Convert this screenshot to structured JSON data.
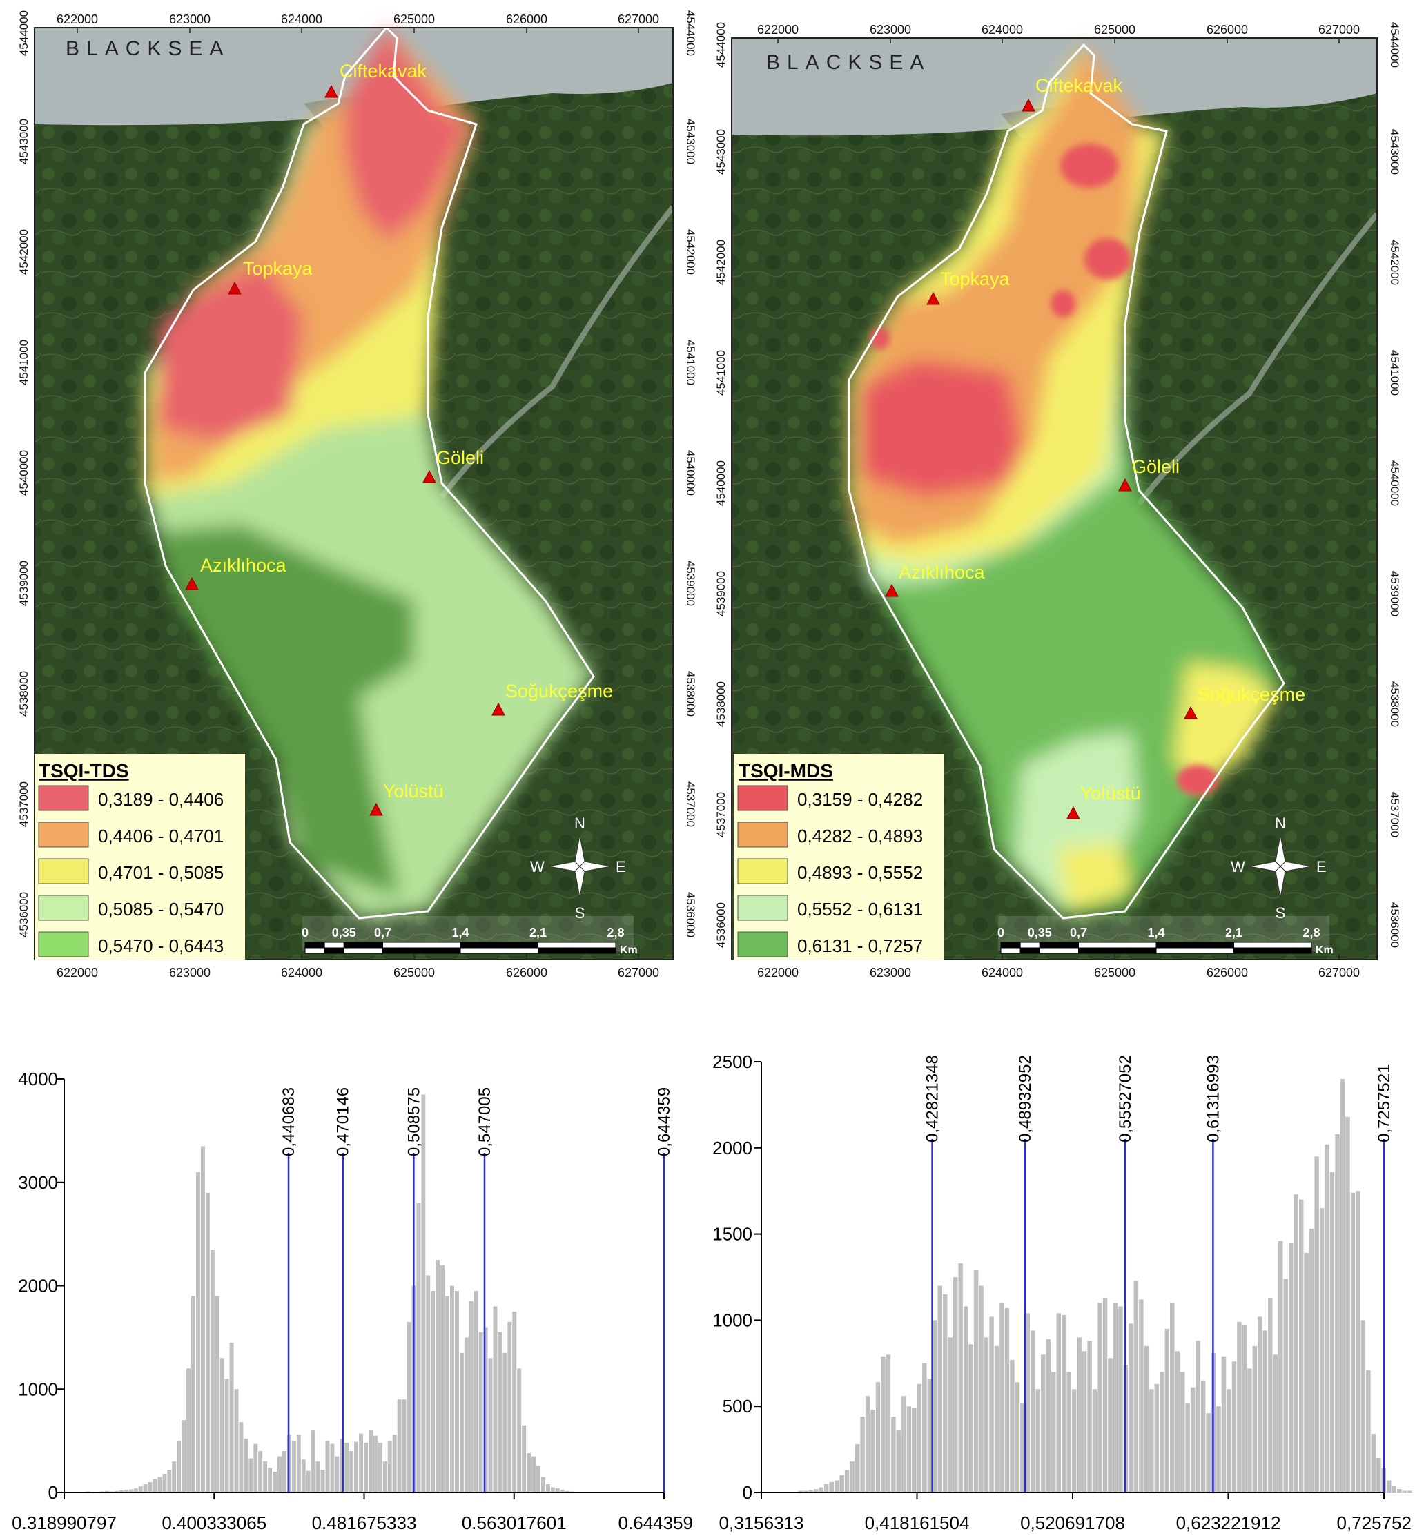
{
  "maps": [
    {
      "id": "tds",
      "sea_label": "BLACKSEA",
      "legend_title": "TSQI-TDS",
      "legend_items": [
        {
          "label": "0,3189 - 0,4406",
          "color": "#e8636b"
        },
        {
          "label": "0,4406 - 0,4701",
          "color": "#f1a860"
        },
        {
          "label": "0,4701 - 0,5085",
          "color": "#f3ef6a"
        },
        {
          "label": "0,5085 - 0,5470",
          "color": "#c9f0a8"
        },
        {
          "label": "0,5470 - 0,6443",
          "color": "#8fdc6b"
        }
      ],
      "x_ticks": [
        "622000",
        "623000",
        "624000",
        "625000",
        "626000",
        "627000"
      ],
      "y_ticks": [
        "4544000",
        "4543000",
        "4542000",
        "4541000",
        "4540000",
        "4539000",
        "4538000",
        "4537000",
        "4536000"
      ],
      "places": [
        {
          "name": "Ciftekavak"
        },
        {
          "name": "Topkaya"
        },
        {
          "name": "Göleli"
        },
        {
          "name": "Azıklıhoca"
        },
        {
          "name": "Soğukçeşme"
        },
        {
          "name": "Yolüstü"
        }
      ],
      "scale": {
        "labels": [
          "0",
          "0,35",
          "0,7",
          "1,4",
          "2,1",
          "2,8"
        ],
        "unit": "Km"
      },
      "north_arrow": {
        "n": "N",
        "s": "S",
        "e": "E",
        "w": "W"
      }
    },
    {
      "id": "mds",
      "sea_label": "BLACKSEA",
      "legend_title": "TSQI-MDS",
      "legend_items": [
        {
          "label": "0,3159 - 0,4282",
          "color": "#e8575e"
        },
        {
          "label": "0,4282 - 0,4893",
          "color": "#f0a55c"
        },
        {
          "label": "0,4893 - 0,5552",
          "color": "#f5f06a"
        },
        {
          "label": "0,5552 - 0,6131",
          "color": "#c8f0b4"
        },
        {
          "label": "0,6131 - 0,7257",
          "color": "#6fbd5a"
        }
      ],
      "x_ticks": [
        "622000",
        "623000",
        "624000",
        "625000",
        "626000",
        "627000"
      ],
      "y_ticks": [
        "4544000",
        "4543000",
        "4542000",
        "4541000",
        "4540000",
        "4539000",
        "4538000",
        "4537000",
        "4536000"
      ],
      "places": [
        {
          "name": "Ciftekavak"
        },
        {
          "name": "Topkaya"
        },
        {
          "name": "Göleli"
        },
        {
          "name": "Azıklıhoca"
        },
        {
          "name": "Soğukçeşme"
        },
        {
          "name": "Yolüstü"
        }
      ],
      "scale": {
        "labels": [
          "0",
          "0,35",
          "0,7",
          "1,4",
          "2,1",
          "2,8"
        ],
        "unit": "Km"
      },
      "north_arrow": {
        "n": "N",
        "s": "S",
        "e": "E",
        "w": "W"
      }
    }
  ],
  "chart_data": [
    {
      "type": "bar",
      "title": "",
      "xlabel": "",
      "ylabel": "",
      "xlim": [
        0.318990797,
        0.644359
      ],
      "ylim": [
        0,
        4000
      ],
      "x_tick_labels": [
        "0.318990797",
        "0.400333065",
        "0.481675333",
        "0.563017601",
        "0.644359"
      ],
      "y_ticks": [
        "4000",
        "3000",
        "2000",
        "1000",
        "0"
      ],
      "break_lines": [
        {
          "value": 0.440683,
          "label": "0,440683"
        },
        {
          "value": 0.470146,
          "label": "0,470146"
        },
        {
          "value": 0.508575,
          "label": "0,508575"
        },
        {
          "value": 0.547005,
          "label": "0,547005"
        },
        {
          "value": 0.644359,
          "label": "0,644359"
        }
      ],
      "bins_start": 0.3255,
      "bin_width": 0.0026,
      "values": [
        5,
        5,
        10,
        5,
        5,
        10,
        15,
        10,
        15,
        20,
        25,
        30,
        40,
        60,
        80,
        100,
        130,
        150,
        180,
        220,
        300,
        500,
        700,
        1200,
        1900,
        3100,
        3350,
        2900,
        2350,
        1900,
        1300,
        1100,
        1450,
        1000,
        680,
        520,
        330,
        470,
        400,
        300,
        240,
        200,
        350,
        400,
        560,
        500,
        560,
        320,
        210,
        600,
        300,
        220,
        500,
        470,
        350,
        520,
        480,
        400,
        490,
        570,
        480,
        600,
        550,
        480,
        300,
        500,
        560,
        900,
        900,
        1650,
        2000,
        2800,
        3850,
        2100,
        1950,
        2250,
        2200,
        1900,
        2000,
        1950,
        1350,
        1500,
        1850,
        1950,
        1550,
        1600,
        1300,
        1800,
        1550,
        1350,
        1650,
        1750,
        1200,
        650,
        380,
        350,
        260,
        150,
        80,
        50,
        40,
        25,
        15,
        10,
        5,
        5,
        5
      ],
      "bar_color": "#bfbfbf",
      "line_color": "#2b2bcf"
    },
    {
      "type": "bar",
      "title": "",
      "xlabel": "",
      "ylabel": "",
      "xlim": [
        0.3156313,
        0.725752
      ],
      "ylim": [
        0,
        2500
      ],
      "x_tick_labels": [
        "0,3156313",
        "0,418161504",
        "0,520691708",
        "0,623221912",
        "0,725752"
      ],
      "y_ticks": [
        "2500",
        "2000",
        "1500",
        "1000",
        "500",
        "0"
      ],
      "break_lines": [
        {
          "value": 0.42821348,
          "label": "0,42821348"
        },
        {
          "value": 0.48932952,
          "label": "0,48932952"
        },
        {
          "value": 0.55527052,
          "label": "0,55527052"
        },
        {
          "value": 0.61316993,
          "label": "0,61316993"
        },
        {
          "value": 0.7257521,
          "label": "0,7257521"
        }
      ],
      "bins_start": 0.34,
      "bin_width": 0.0034,
      "values": [
        10,
        10,
        15,
        20,
        30,
        50,
        60,
        70,
        100,
        130,
        180,
        280,
        440,
        560,
        480,
        640,
        790,
        800,
        440,
        360,
        560,
        500,
        490,
        630,
        750,
        660,
        1000,
        1200,
        1150,
        900,
        1250,
        1330,
        1080,
        860,
        1290,
        1200,
        900,
        1020,
        850,
        1100,
        1070,
        770,
        640,
        520,
        1040,
        940,
        600,
        800,
        890,
        700,
        1040,
        1030,
        700,
        600,
        900,
        820,
        880,
        600,
        1100,
        1130,
        780,
        1100,
        1080,
        740,
        980,
        1230,
        1120,
        850,
        600,
        630,
        700,
        950,
        1100,
        820,
        700,
        520,
        610,
        880,
        650,
        460,
        810,
        500,
        790,
        600,
        760,
        990,
        970,
        720,
        850,
        1020,
        940,
        1130,
        800,
        1460,
        1240,
        1450,
        1730,
        1700,
        1390,
        1530,
        1950,
        1650,
        2020,
        1860,
        2080,
        2400,
        2180,
        1740,
        1750,
        1000,
        710,
        340,
        200,
        140,
        70,
        40,
        20,
        10,
        10
      ],
      "bar_color": "#bfbfbf",
      "line_color": "#2b2bcf"
    }
  ]
}
